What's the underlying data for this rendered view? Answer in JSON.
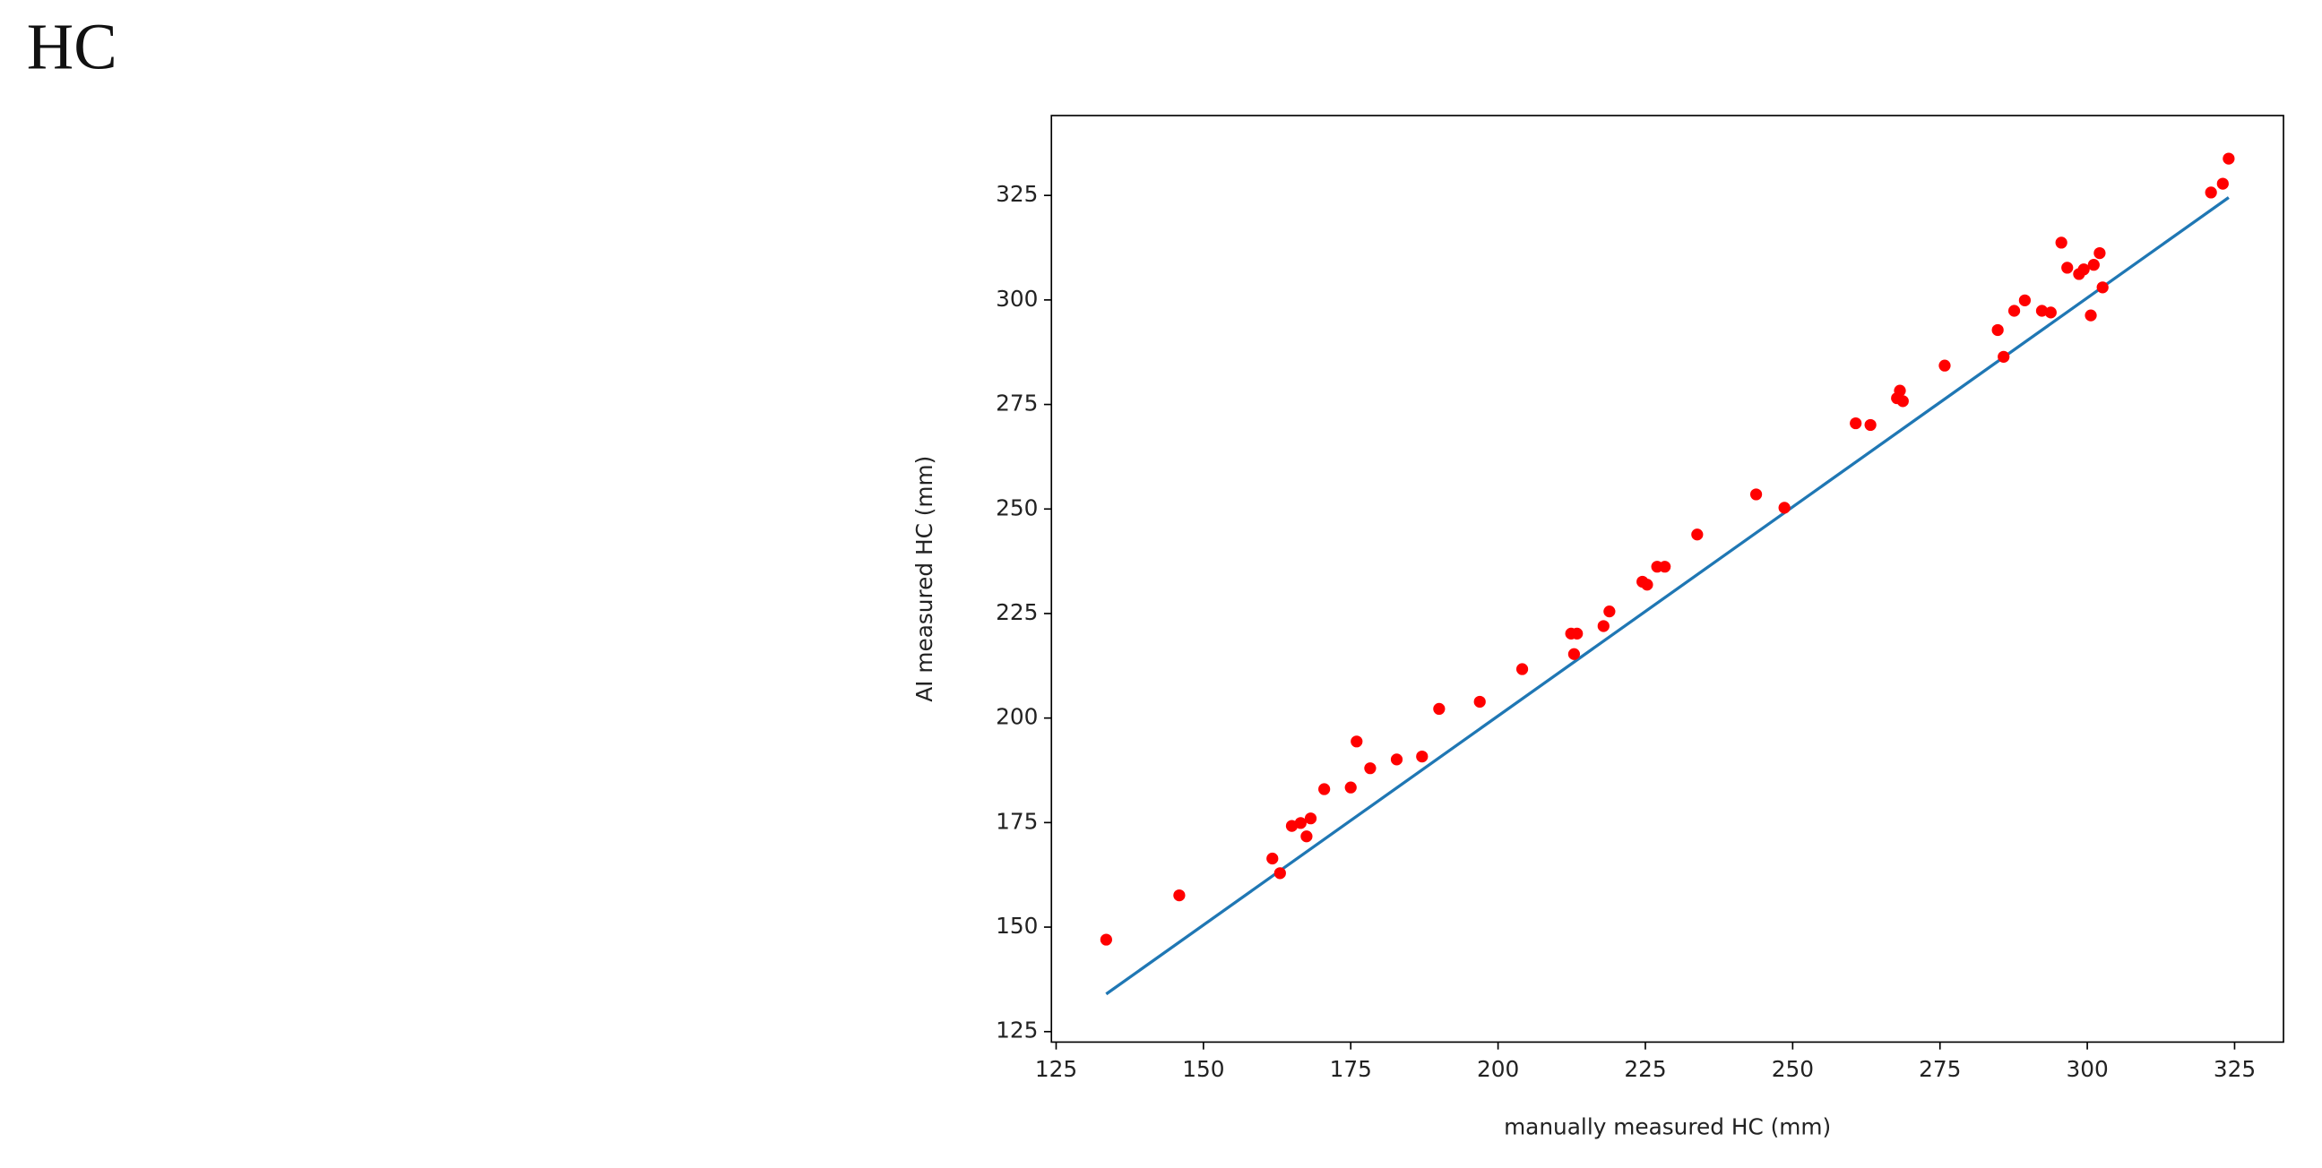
{
  "chart_data": {
    "type": "scatter",
    "title": "HC",
    "xlabel": "manually measured HC (mm)",
    "ylabel": "AI measured HC (mm)",
    "xlim": [
      124.2,
      333.3
    ],
    "ylim": [
      122.5,
      344.1
    ],
    "xticks": [
      125,
      150,
      175,
      200,
      225,
      250,
      275,
      300,
      325
    ],
    "yticks": [
      125,
      150,
      175,
      200,
      225,
      250,
      275,
      300,
      325
    ],
    "grid": false,
    "series": [
      {
        "color": "#ff0000",
        "x": [
          133.5,
          145.9,
          161.7,
          163,
          165,
          166.5,
          167.5,
          168.2,
          170.5,
          175,
          176,
          178.3,
          182.8,
          187.1,
          190,
          196.9,
          204.1,
          212.4,
          213.4,
          212.9,
          217.9,
          218.9,
          224.5,
          225.3,
          227,
          228.3,
          233.8,
          243.8,
          248.6,
          260.7,
          263.2,
          267.7,
          268.2,
          268.7,
          275.8,
          284.8,
          285.8,
          287.6,
          289.4,
          292.3,
          293.8,
          295.6,
          296.6,
          298.6,
          299.4,
          301.1,
          300.6,
          302.1,
          302.6,
          321,
          323,
          324
        ],
        "values": [
          147,
          157.6,
          166.4,
          162.9,
          174.2,
          174.9,
          171.7,
          176,
          183,
          183.4,
          194.4,
          188,
          190.1,
          190.8,
          202.2,
          203.9,
          211.7,
          220.2,
          220.2,
          215.3,
          222,
          225.5,
          232.6,
          231.9,
          236.2,
          236.2,
          243.9,
          253.5,
          250.3,
          270.5,
          270.1,
          276.5,
          278.3,
          275.8,
          284.3,
          292.8,
          286.4,
          297.4,
          299.9,
          297.4,
          297,
          313.7,
          307.7,
          306.2,
          307.3,
          308.4,
          296.3,
          311.2,
          303,
          325.7,
          327.8,
          333.8
        ]
      }
    ],
    "line": {
      "color": "#1f77b4",
      "x": [
        133.5,
        324
      ],
      "values": [
        134,
        324.5
      ]
    }
  }
}
